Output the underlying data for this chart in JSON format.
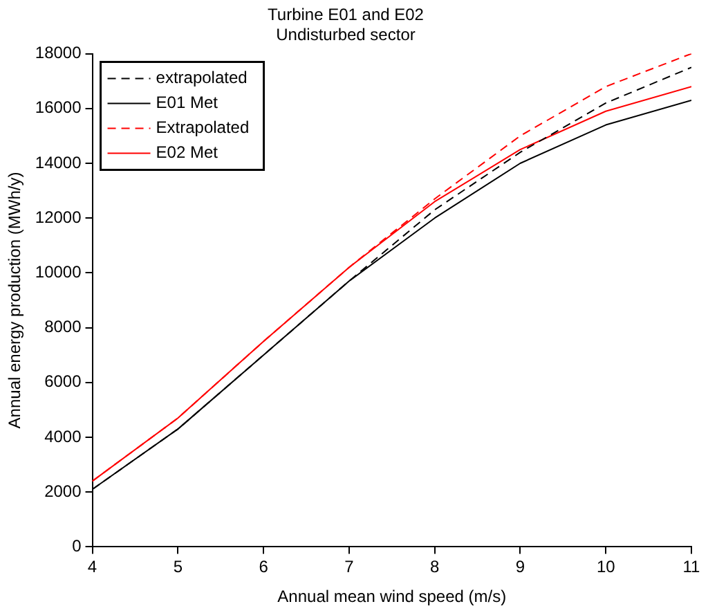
{
  "chart_data": {
    "type": "line",
    "title": "Turbine E01 and E02",
    "subtitle": "Undisturbed sector",
    "xlabel": "Annual mean wind speed (m/s)",
    "ylabel": "Annual energy production (MWh/y)",
    "x": [
      4,
      5,
      6,
      7,
      8,
      9,
      10,
      11
    ],
    "series": [
      {
        "name": "extrapolated",
        "color": "#000000",
        "line_style": "dashed",
        "values": [
          2100,
          4300,
          7000,
          9700,
          12300,
          14400,
          16200,
          17500
        ]
      },
      {
        "name": "E01 Met",
        "color": "#000000",
        "line_style": "solid",
        "values": [
          2100,
          4300,
          7000,
          9700,
          12000,
          14000,
          15400,
          16300
        ]
      },
      {
        "name": "Extrapolated",
        "color": "#ff0000",
        "line_style": "dashed",
        "values": [
          2400,
          4700,
          7500,
          10200,
          12700,
          15000,
          16800,
          18000
        ]
      },
      {
        "name": "E02 Met",
        "color": "#ff0000",
        "line_style": "solid",
        "values": [
          2400,
          4700,
          7500,
          10200,
          12600,
          14500,
          15900,
          16800
        ]
      }
    ],
    "xlim": [
      4,
      11
    ],
    "xticks": [
      4,
      5,
      6,
      7,
      8,
      9,
      10,
      11
    ],
    "ylim": [
      0,
      18000
    ],
    "yticks": [
      0,
      2000,
      4000,
      6000,
      8000,
      10000,
      12000,
      14000,
      16000,
      18000
    ],
    "grid": false,
    "legend": "top left",
    "marker": "none"
  }
}
